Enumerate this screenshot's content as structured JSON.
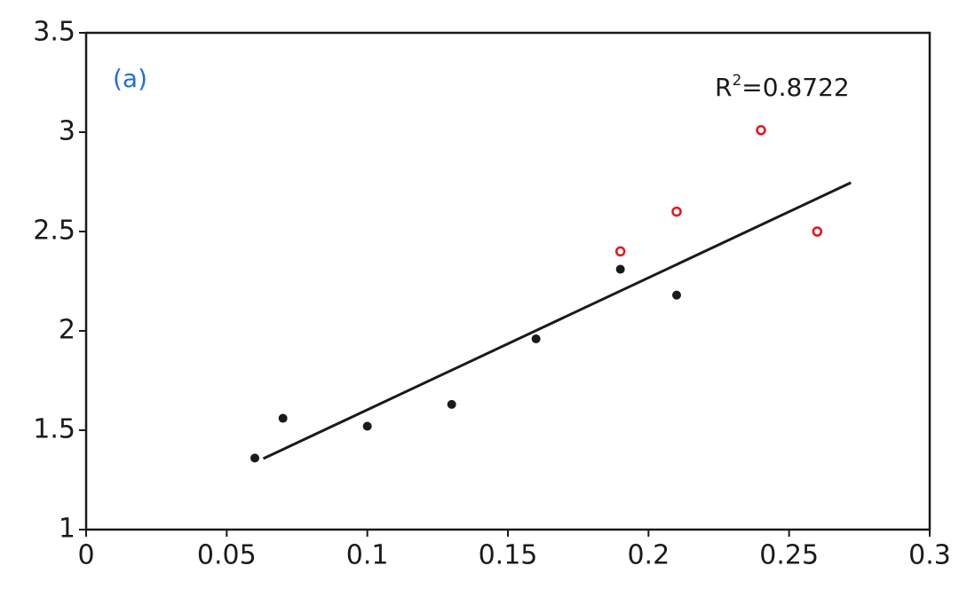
{
  "chart_data": {
    "type": "scatter",
    "series": [
      {
        "color": "#1a1a1a",
        "marker": "filled",
        "x": [
          0.06,
          0.07,
          0.1,
          0.13,
          0.16,
          0.19,
          0.21
        ],
        "values": [
          1.36,
          1.56,
          1.52,
          1.63,
          1.96,
          2.31,
          2.18
        ]
      },
      {
        "color": "#e8141b",
        "marker": "open",
        "x": [
          0.19,
          0.21,
          0.24,
          0.26
        ],
        "values": [
          2.4,
          2.6,
          3.01,
          2.5
        ]
      }
    ],
    "trendline": {
      "color": "#1a1a1a",
      "x": [
        0.063,
        0.272
      ],
      "values": [
        1.357,
        2.746
      ]
    },
    "label": "(a)",
    "annotation": {
      "base": "R",
      "superscript": "2",
      "text": "=0.8722"
    },
    "xlim": [
      0,
      0.3
    ],
    "xticks": [
      0,
      0.05,
      0.1,
      0.15,
      0.2,
      0.25,
      0.3
    ],
    "ylim": [
      1,
      3.5
    ],
    "yticks": [
      1,
      1.5,
      2,
      2.5,
      3,
      3.5
    ],
    "grid": false
  }
}
